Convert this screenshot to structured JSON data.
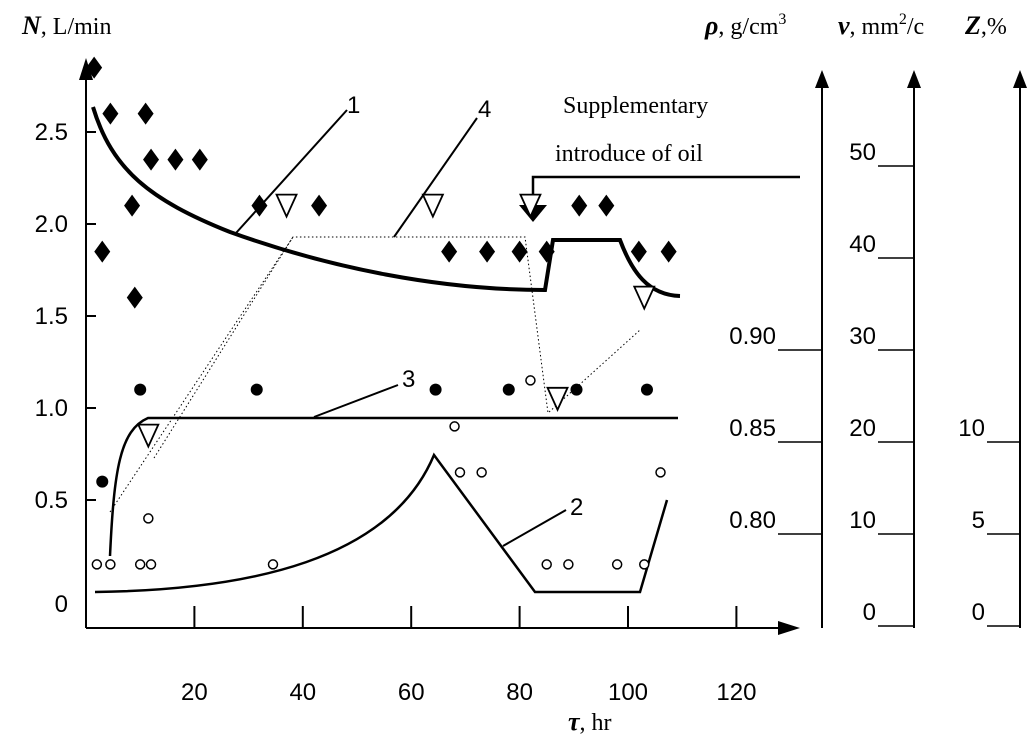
{
  "chart_data": {
    "type": "scatter",
    "x_axis": {
      "label_symbol": "τ",
      "label_unit": ", hr",
      "ticks": [
        20,
        40,
        60,
        80,
        100,
        120
      ],
      "range": [
        0,
        130
      ]
    },
    "left_axis": {
      "label_symbol": "N",
      "label_unit": ", L/min",
      "ticks": [
        "0",
        "0.5",
        "1.0",
        "1.5",
        "2.0",
        "2.5"
      ],
      "tick_values": [
        0,
        0.5,
        1.0,
        1.5,
        2.0,
        2.5
      ],
      "range": [
        0,
        3.0
      ]
    },
    "right_axes": [
      {
        "id": "rho",
        "label_symbol": "ρ",
        "label_unit": ", g/cm",
        "label_sup": "3",
        "ticks": [
          "0.80",
          "0.85",
          "0.90"
        ],
        "tick_values": [
          0.8,
          0.85,
          0.9
        ]
      },
      {
        "id": "nu",
        "label_symbol": "ν",
        "label_unit": ", mm",
        "label_sup": "2",
        "label_unit_after": "/c",
        "ticks": [
          "0",
          "10",
          "20",
          "30",
          "40",
          "50"
        ],
        "tick_values": [
          0,
          10,
          20,
          30,
          40,
          50
        ]
      },
      {
        "id": "z",
        "label_symbol": "Z",
        "label_unit": ",%",
        "ticks": [
          "0",
          "5",
          "10"
        ],
        "tick_values": [
          0,
          5,
          10
        ]
      }
    ],
    "annotation": {
      "lines": [
        "Supplementary",
        "introduce of oil"
      ],
      "x": 86
    },
    "curve_labels": [
      "1",
      "2",
      "3",
      "4"
    ],
    "series": [
      {
        "name": "1",
        "axis": "N",
        "marker": "diamond",
        "points": [
          [
            1.5,
            2.85
          ],
          [
            3,
            1.85
          ],
          [
            4.5,
            2.6
          ],
          [
            8.5,
            2.1
          ],
          [
            9,
            1.6
          ],
          [
            11,
            2.6
          ],
          [
            12,
            2.35
          ],
          [
            16.5,
            2.35
          ],
          [
            21,
            2.35
          ],
          [
            32,
            2.1
          ],
          [
            43,
            2.1
          ],
          [
            67,
            1.85
          ],
          [
            74,
            1.85
          ],
          [
            80,
            1.85
          ],
          [
            85,
            1.85
          ],
          [
            91,
            2.1
          ],
          [
            96,
            2.1
          ],
          [
            102,
            1.85
          ],
          [
            107.5,
            1.85
          ]
        ]
      },
      {
        "name": "2",
        "axis": "Z",
        "marker": "open-circle",
        "points": [
          [
            2,
            0.15
          ],
          [
            4.5,
            0.15
          ],
          [
            10,
            0.15
          ],
          [
            12,
            0.15
          ],
          [
            11.5,
            0.4
          ],
          [
            34.5,
            0.15
          ],
          [
            68,
            0.9
          ],
          [
            69,
            0.65
          ],
          [
            73,
            0.65
          ],
          [
            85,
            0.15
          ],
          [
            89,
            0.15
          ],
          [
            98,
            0.15
          ],
          [
            103,
            0.15
          ],
          [
            106,
            0.65
          ],
          [
            82,
            1.15
          ]
        ]
      },
      {
        "name": "3",
        "axis": "rho",
        "marker": "filled-circle",
        "points": [
          [
            3,
            0.6
          ],
          [
            10,
            1.1
          ],
          [
            31.5,
            1.1
          ],
          [
            64.5,
            1.1
          ],
          [
            78,
            1.1
          ],
          [
            90.5,
            1.1
          ],
          [
            103.5,
            1.1
          ]
        ]
      },
      {
        "name": "4",
        "axis": "nu",
        "marker": "triangle-down",
        "points": [
          [
            11.5,
            0.85
          ],
          [
            37,
            2.1
          ],
          [
            64,
            2.1
          ],
          [
            82,
            2.1
          ],
          [
            87,
            1.05
          ],
          [
            103,
            1.6
          ]
        ]
      }
    ]
  }
}
